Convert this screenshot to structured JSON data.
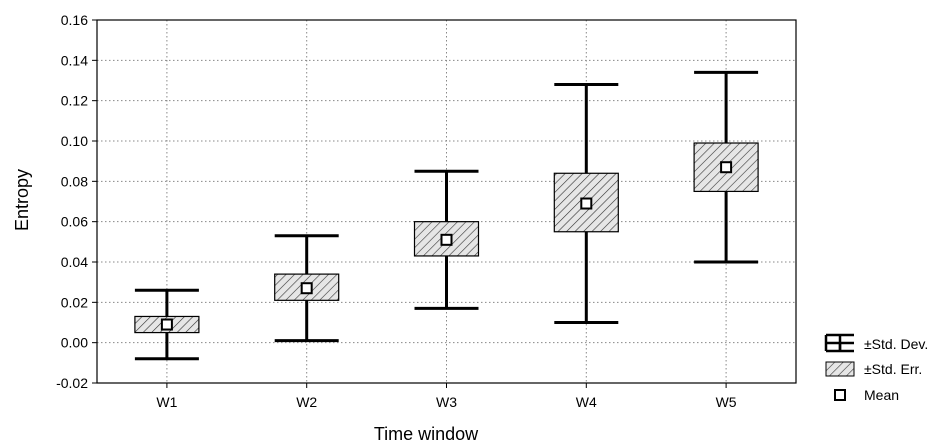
{
  "chart_data": {
    "type": "box",
    "xlabel": "Time window",
    "ylabel": "Entropy",
    "ylim": [
      -0.02,
      0.16
    ],
    "yticks": [
      "-0.02",
      "0.00",
      "0.02",
      "0.04",
      "0.06",
      "0.08",
      "0.10",
      "0.12",
      "0.14",
      "0.16"
    ],
    "ytick_values": [
      -0.02,
      0.0,
      0.02,
      0.04,
      0.06,
      0.08,
      0.1,
      0.12,
      0.14,
      0.16
    ],
    "categories": [
      "W1",
      "W2",
      "W3",
      "W4",
      "W5"
    ],
    "mean": [
      0.009,
      0.027,
      0.051,
      0.069,
      0.087
    ],
    "se_low": [
      0.005,
      0.021,
      0.043,
      0.055,
      0.075
    ],
    "se_high": [
      0.013,
      0.034,
      0.06,
      0.084,
      0.099
    ],
    "sd_low": [
      -0.008,
      0.001,
      0.017,
      0.01,
      0.04
    ],
    "sd_high": [
      0.026,
      0.053,
      0.085,
      0.128,
      0.134
    ],
    "grid": true,
    "legend_position": "bottom-right",
    "legend": [
      "±Std. Dev.",
      "±Std. Err.",
      "Mean"
    ]
  }
}
